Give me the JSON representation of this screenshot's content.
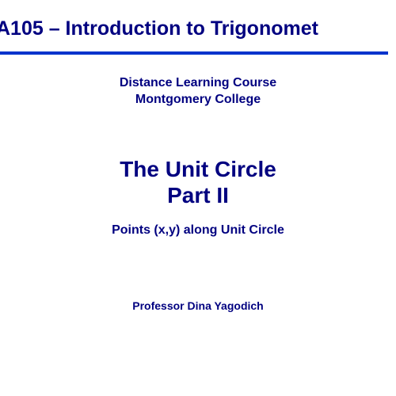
{
  "slide": {
    "course_title": "A105 – Introduction to Trigonomet",
    "course_info_line1": "Distance Learning Course",
    "course_info_line2": "Montgomery College",
    "lesson_title_line1": "The Unit Circle",
    "lesson_title_line2": "Part II",
    "lesson_subtitle": "Points (x,y) along Unit Circle",
    "instructor": "Professor Dina Yagodich"
  },
  "style": {
    "text_color": "#000080",
    "underline_color": "#0033cc",
    "background_color": "#ffffff",
    "course_title_fontsize": 25,
    "course_info_fontsize": 16,
    "lesson_title_fontsize": 28,
    "lesson_subtitle_fontsize": 16,
    "instructor_fontsize": 14,
    "font_family": "Arial, Helvetica, sans-serif",
    "font_weight": "bold",
    "underline_height": 4
  }
}
